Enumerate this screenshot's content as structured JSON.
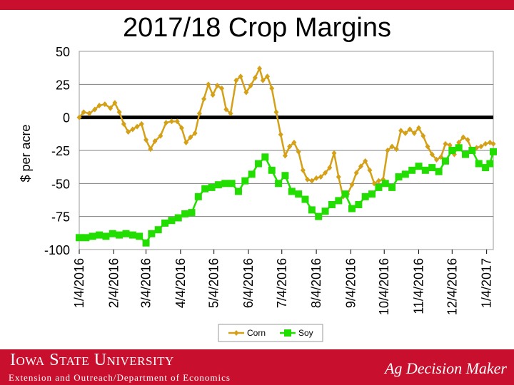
{
  "title": "2017/18 Crop Margins",
  "footer": {
    "university": "Iowa State University",
    "department": "Extension and Outreach/Department of Economics",
    "brand": "Ag Decision Maker"
  },
  "colors": {
    "corn": "#d4a017",
    "soy": "#22dd00",
    "zero_line": "#000000",
    "brand_red": "#c8102e"
  },
  "chart_data": {
    "type": "line",
    "title": "2017/18 Crop Margins",
    "xlabel": "",
    "ylabel": "$ per acre",
    "ylim": [
      -100,
      50
    ],
    "yticks": [
      50,
      25,
      0,
      -25,
      -50,
      -75,
      -100
    ],
    "xticks": [
      "1/4/2016",
      "2/4/2016",
      "3/4/2016",
      "4/4/2016",
      "5/4/2016",
      "6/4/2016",
      "7/4/2016",
      "8/4/2016",
      "9/4/2016",
      "10/4/2016",
      "11/4/2016",
      "12/4/2016",
      "1/4/2017"
    ],
    "xlim": [
      "2016-01-04",
      "2017-01-10"
    ],
    "grid": "horizontal",
    "legend_position": "bottom",
    "series": [
      {
        "name": "Corn",
        "marker": "diamond",
        "color": "#d4a017",
        "points": [
          [
            "2016-01-04",
            0
          ],
          [
            "2016-01-08",
            4
          ],
          [
            "2016-01-13",
            3
          ],
          [
            "2016-01-18",
            6
          ],
          [
            "2016-01-22",
            9
          ],
          [
            "2016-01-27",
            10
          ],
          [
            "2016-02-01",
            7
          ],
          [
            "2016-02-05",
            11
          ],
          [
            "2016-02-09",
            4
          ],
          [
            "2016-02-13",
            -5
          ],
          [
            "2016-02-17",
            -11
          ],
          [
            "2016-02-21",
            -9
          ],
          [
            "2016-02-25",
            -7
          ],
          [
            "2016-02-29",
            -5
          ],
          [
            "2016-03-04",
            -17
          ],
          [
            "2016-03-08",
            -24
          ],
          [
            "2016-03-12",
            -18
          ],
          [
            "2016-03-17",
            -14
          ],
          [
            "2016-03-22",
            -4
          ],
          [
            "2016-03-27",
            -3
          ],
          [
            "2016-04-01",
            -3
          ],
          [
            "2016-04-05",
            -8
          ],
          [
            "2016-04-09",
            -19
          ],
          [
            "2016-04-13",
            -15
          ],
          [
            "2016-04-17",
            -12
          ],
          [
            "2016-04-21",
            3
          ],
          [
            "2016-04-25",
            14
          ],
          [
            "2016-04-29",
            25
          ],
          [
            "2016-05-03",
            17
          ],
          [
            "2016-05-07",
            24
          ],
          [
            "2016-05-11",
            22
          ],
          [
            "2016-05-15",
            6
          ],
          [
            "2016-05-19",
            3
          ],
          [
            "2016-05-24",
            28
          ],
          [
            "2016-05-28",
            31
          ],
          [
            "2016-06-02",
            19
          ],
          [
            "2016-06-06",
            24
          ],
          [
            "2016-06-10",
            30
          ],
          [
            "2016-06-14",
            37
          ],
          [
            "2016-06-17",
            28
          ],
          [
            "2016-06-21",
            31
          ],
          [
            "2016-06-25",
            22
          ],
          [
            "2016-06-29",
            4
          ],
          [
            "2016-07-03",
            -13
          ],
          [
            "2016-07-07",
            -29
          ],
          [
            "2016-07-11",
            -22
          ],
          [
            "2016-07-15",
            -19
          ],
          [
            "2016-07-19",
            -26
          ],
          [
            "2016-07-23",
            -40
          ],
          [
            "2016-07-27",
            -47
          ],
          [
            "2016-07-31",
            -48
          ],
          [
            "2016-08-04",
            -46
          ],
          [
            "2016-08-08",
            -45
          ],
          [
            "2016-08-12",
            -42
          ],
          [
            "2016-08-16",
            -38
          ],
          [
            "2016-08-20",
            -27
          ],
          [
            "2016-08-24",
            -45
          ],
          [
            "2016-08-28",
            -60
          ],
          [
            "2016-09-01",
            -58
          ],
          [
            "2016-09-05",
            -51
          ],
          [
            "2016-09-09",
            -42
          ],
          [
            "2016-09-13",
            -37
          ],
          [
            "2016-09-17",
            -33
          ],
          [
            "2016-09-21",
            -40
          ],
          [
            "2016-09-25",
            -50
          ],
          [
            "2016-09-29",
            -48
          ],
          [
            "2016-10-03",
            -47
          ],
          [
            "2016-10-07",
            -25
          ],
          [
            "2016-10-11",
            -22
          ],
          [
            "2016-10-15",
            -24
          ],
          [
            "2016-10-19",
            -10
          ],
          [
            "2016-10-23",
            -12
          ],
          [
            "2016-10-27",
            -9
          ],
          [
            "2016-10-31",
            -12
          ],
          [
            "2016-11-04",
            -8
          ],
          [
            "2016-11-08",
            -14
          ],
          [
            "2016-11-12",
            -22
          ],
          [
            "2016-11-16",
            -28
          ],
          [
            "2016-11-20",
            -32
          ],
          [
            "2016-11-24",
            -30
          ],
          [
            "2016-11-28",
            -20
          ],
          [
            "2016-12-02",
            -21
          ],
          [
            "2016-12-06",
            -28
          ],
          [
            "2016-12-10",
            -19
          ],
          [
            "2016-12-14",
            -15
          ],
          [
            "2016-12-18",
            -17
          ],
          [
            "2016-12-22",
            -25
          ],
          [
            "2016-12-26",
            -23
          ],
          [
            "2016-12-30",
            -22
          ],
          [
            "2017-01-03",
            -20
          ],
          [
            "2017-01-07",
            -19
          ],
          [
            "2017-01-10",
            -20
          ]
        ]
      },
      {
        "name": "Soy",
        "marker": "square",
        "color": "#22dd00",
        "points": [
          [
            "2016-01-04",
            -91
          ],
          [
            "2016-01-10",
            -91
          ],
          [
            "2016-01-16",
            -90
          ],
          [
            "2016-01-22",
            -89
          ],
          [
            "2016-01-28",
            -90
          ],
          [
            "2016-02-03",
            -88
          ],
          [
            "2016-02-09",
            -89
          ],
          [
            "2016-02-15",
            -88
          ],
          [
            "2016-02-21",
            -89
          ],
          [
            "2016-02-27",
            -90
          ],
          [
            "2016-03-04",
            -95
          ],
          [
            "2016-03-09",
            -88
          ],
          [
            "2016-03-15",
            -85
          ],
          [
            "2016-03-21",
            -80
          ],
          [
            "2016-03-27",
            -78
          ],
          [
            "2016-04-02",
            -76
          ],
          [
            "2016-04-08",
            -73
          ],
          [
            "2016-04-14",
            -72
          ],
          [
            "2016-04-20",
            -60
          ],
          [
            "2016-04-26",
            -54
          ],
          [
            "2016-05-02",
            -53
          ],
          [
            "2016-05-08",
            -51
          ],
          [
            "2016-05-14",
            -50
          ],
          [
            "2016-05-20",
            -50
          ],
          [
            "2016-05-26",
            -56
          ],
          [
            "2016-06-01",
            -48
          ],
          [
            "2016-06-07",
            -43
          ],
          [
            "2016-06-13",
            -35
          ],
          [
            "2016-06-19",
            -30
          ],
          [
            "2016-06-25",
            -40
          ],
          [
            "2016-07-01",
            -50
          ],
          [
            "2016-07-07",
            -44
          ],
          [
            "2016-07-13",
            -56
          ],
          [
            "2016-07-19",
            -58
          ],
          [
            "2016-07-25",
            -62
          ],
          [
            "2016-07-31",
            -70
          ],
          [
            "2016-08-06",
            -75
          ],
          [
            "2016-08-12",
            -71
          ],
          [
            "2016-08-18",
            -66
          ],
          [
            "2016-08-24",
            -63
          ],
          [
            "2016-08-30",
            -58
          ],
          [
            "2016-09-05",
            -69
          ],
          [
            "2016-09-11",
            -66
          ],
          [
            "2016-09-17",
            -60
          ],
          [
            "2016-09-23",
            -58
          ],
          [
            "2016-09-29",
            -53
          ],
          [
            "2016-10-05",
            -50
          ],
          [
            "2016-10-11",
            -53
          ],
          [
            "2016-10-17",
            -45
          ],
          [
            "2016-10-23",
            -43
          ],
          [
            "2016-10-29",
            -40
          ],
          [
            "2016-11-04",
            -37
          ],
          [
            "2016-11-10",
            -40
          ],
          [
            "2016-11-16",
            -38
          ],
          [
            "2016-11-22",
            -41
          ],
          [
            "2016-11-28",
            -33
          ],
          [
            "2016-12-04",
            -25
          ],
          [
            "2016-12-10",
            -23
          ],
          [
            "2016-12-16",
            -28
          ],
          [
            "2016-12-22",
            -25
          ],
          [
            "2016-12-28",
            -35
          ],
          [
            "2017-01-03",
            -38
          ],
          [
            "2017-01-07",
            -35
          ],
          [
            "2017-01-10",
            -26
          ]
        ]
      }
    ]
  }
}
